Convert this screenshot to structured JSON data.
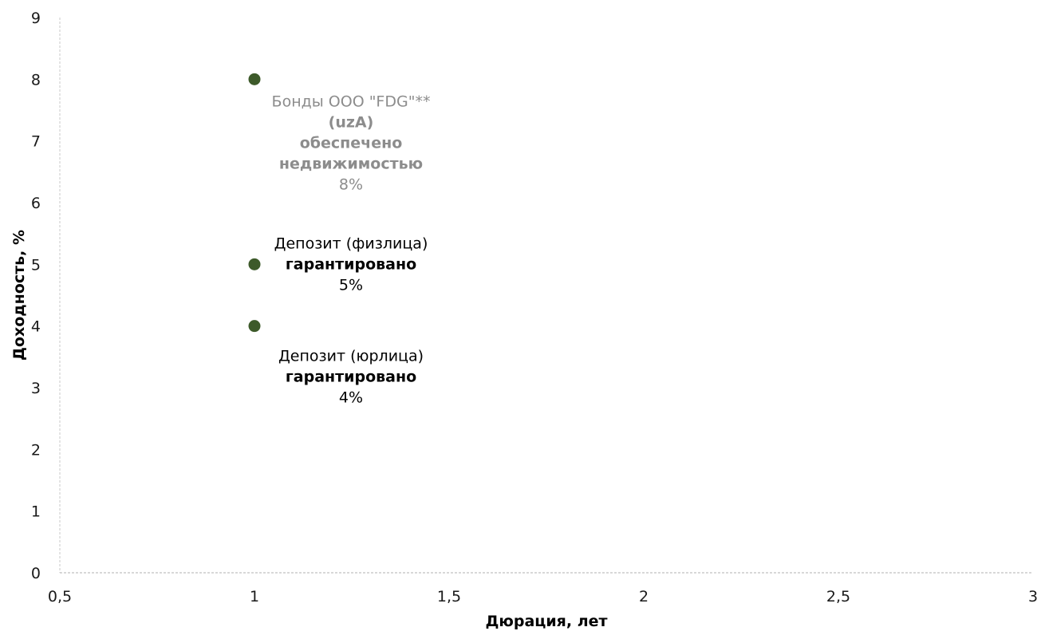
{
  "chart_data": {
    "type": "scatter",
    "title": "",
    "xlabel": "Дюрация, лет",
    "ylabel": "Доходность, %",
    "xlim": [
      0.5,
      3
    ],
    "ylim": [
      0,
      9
    ],
    "x_ticks": [
      "0,5",
      "1",
      "1,5",
      "2",
      "2,5",
      "3"
    ],
    "x_tick_values": [
      0.5,
      1,
      1.5,
      2,
      2.5,
      3
    ],
    "y_ticks": [
      "0",
      "1",
      "2",
      "3",
      "4",
      "5",
      "6",
      "7",
      "8",
      "9"
    ],
    "y_tick_values": [
      0,
      1,
      2,
      3,
      4,
      5,
      6,
      7,
      8,
      9
    ],
    "grid": false,
    "marker_color": "#3d5a2a",
    "points": [
      {
        "x": 1,
        "y": 8,
        "label_color": "#8c8c8c",
        "label_lines": [
          {
            "text": "Бонды ООО \"FDG\"**",
            "bold": false
          },
          {
            "text": "(uzA)",
            "bold": true
          },
          {
            "text": "обеспечено",
            "bold": true
          },
          {
            "text": "недвижимостью",
            "bold": true
          },
          {
            "text": "8%",
            "bold": false
          }
        ]
      },
      {
        "x": 1,
        "y": 5,
        "label_color": "#000000",
        "label_lines": [
          {
            "text": "Депозит (физлица)",
            "bold": false
          },
          {
            "text": "гарантировано",
            "bold": true
          },
          {
            "text": "5%",
            "bold": false
          }
        ]
      },
      {
        "x": 1,
        "y": 4,
        "label_color": "#000000",
        "label_lines": [
          {
            "text": "Депозит (юрлица)",
            "bold": false
          },
          {
            "text": "гарантировано",
            "bold": true
          },
          {
            "text": "4%",
            "bold": false
          }
        ]
      }
    ]
  }
}
